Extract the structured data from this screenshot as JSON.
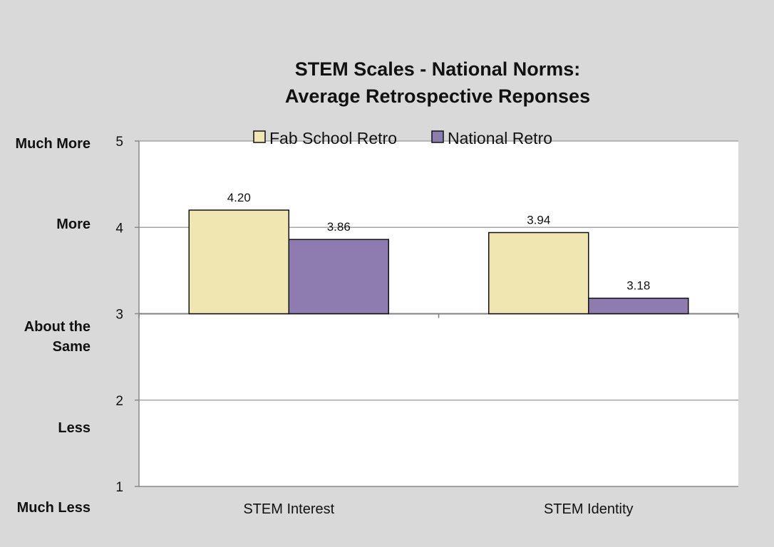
{
  "chart_data": {
    "type": "bar",
    "title": [
      "STEM Scales - National Norms:",
      "Average Retrospective Reponses"
    ],
    "categories": [
      "STEM Interest",
      "STEM Identity"
    ],
    "series": [
      {
        "name": "Fab School Retro",
        "values": [
          4.2,
          3.94
        ],
        "color": "#f0e6b2"
      },
      {
        "name": "National Retro",
        "values": [
          3.86,
          3.18
        ],
        "color": "#8e7cb0"
      }
    ],
    "data_labels": [
      [
        "4.20",
        "3.94"
      ],
      [
        "3.86",
        "3.18"
      ]
    ],
    "ylim": [
      1,
      5
    ],
    "yticks": [
      "1",
      "2",
      "3",
      "4",
      "5"
    ],
    "baseline": 3,
    "scale_labels": [
      {
        "value": 5,
        "lines": [
          "Much More"
        ]
      },
      {
        "value": 4,
        "lines": [
          "More"
        ]
      },
      {
        "value": 3,
        "lines": [
          "About the",
          "Same"
        ]
      },
      {
        "value": 2,
        "lines": [
          "Less"
        ]
      },
      {
        "value": 1,
        "lines": [
          "Much Less"
        ]
      }
    ],
    "grid": true,
    "legend_position": "top"
  }
}
